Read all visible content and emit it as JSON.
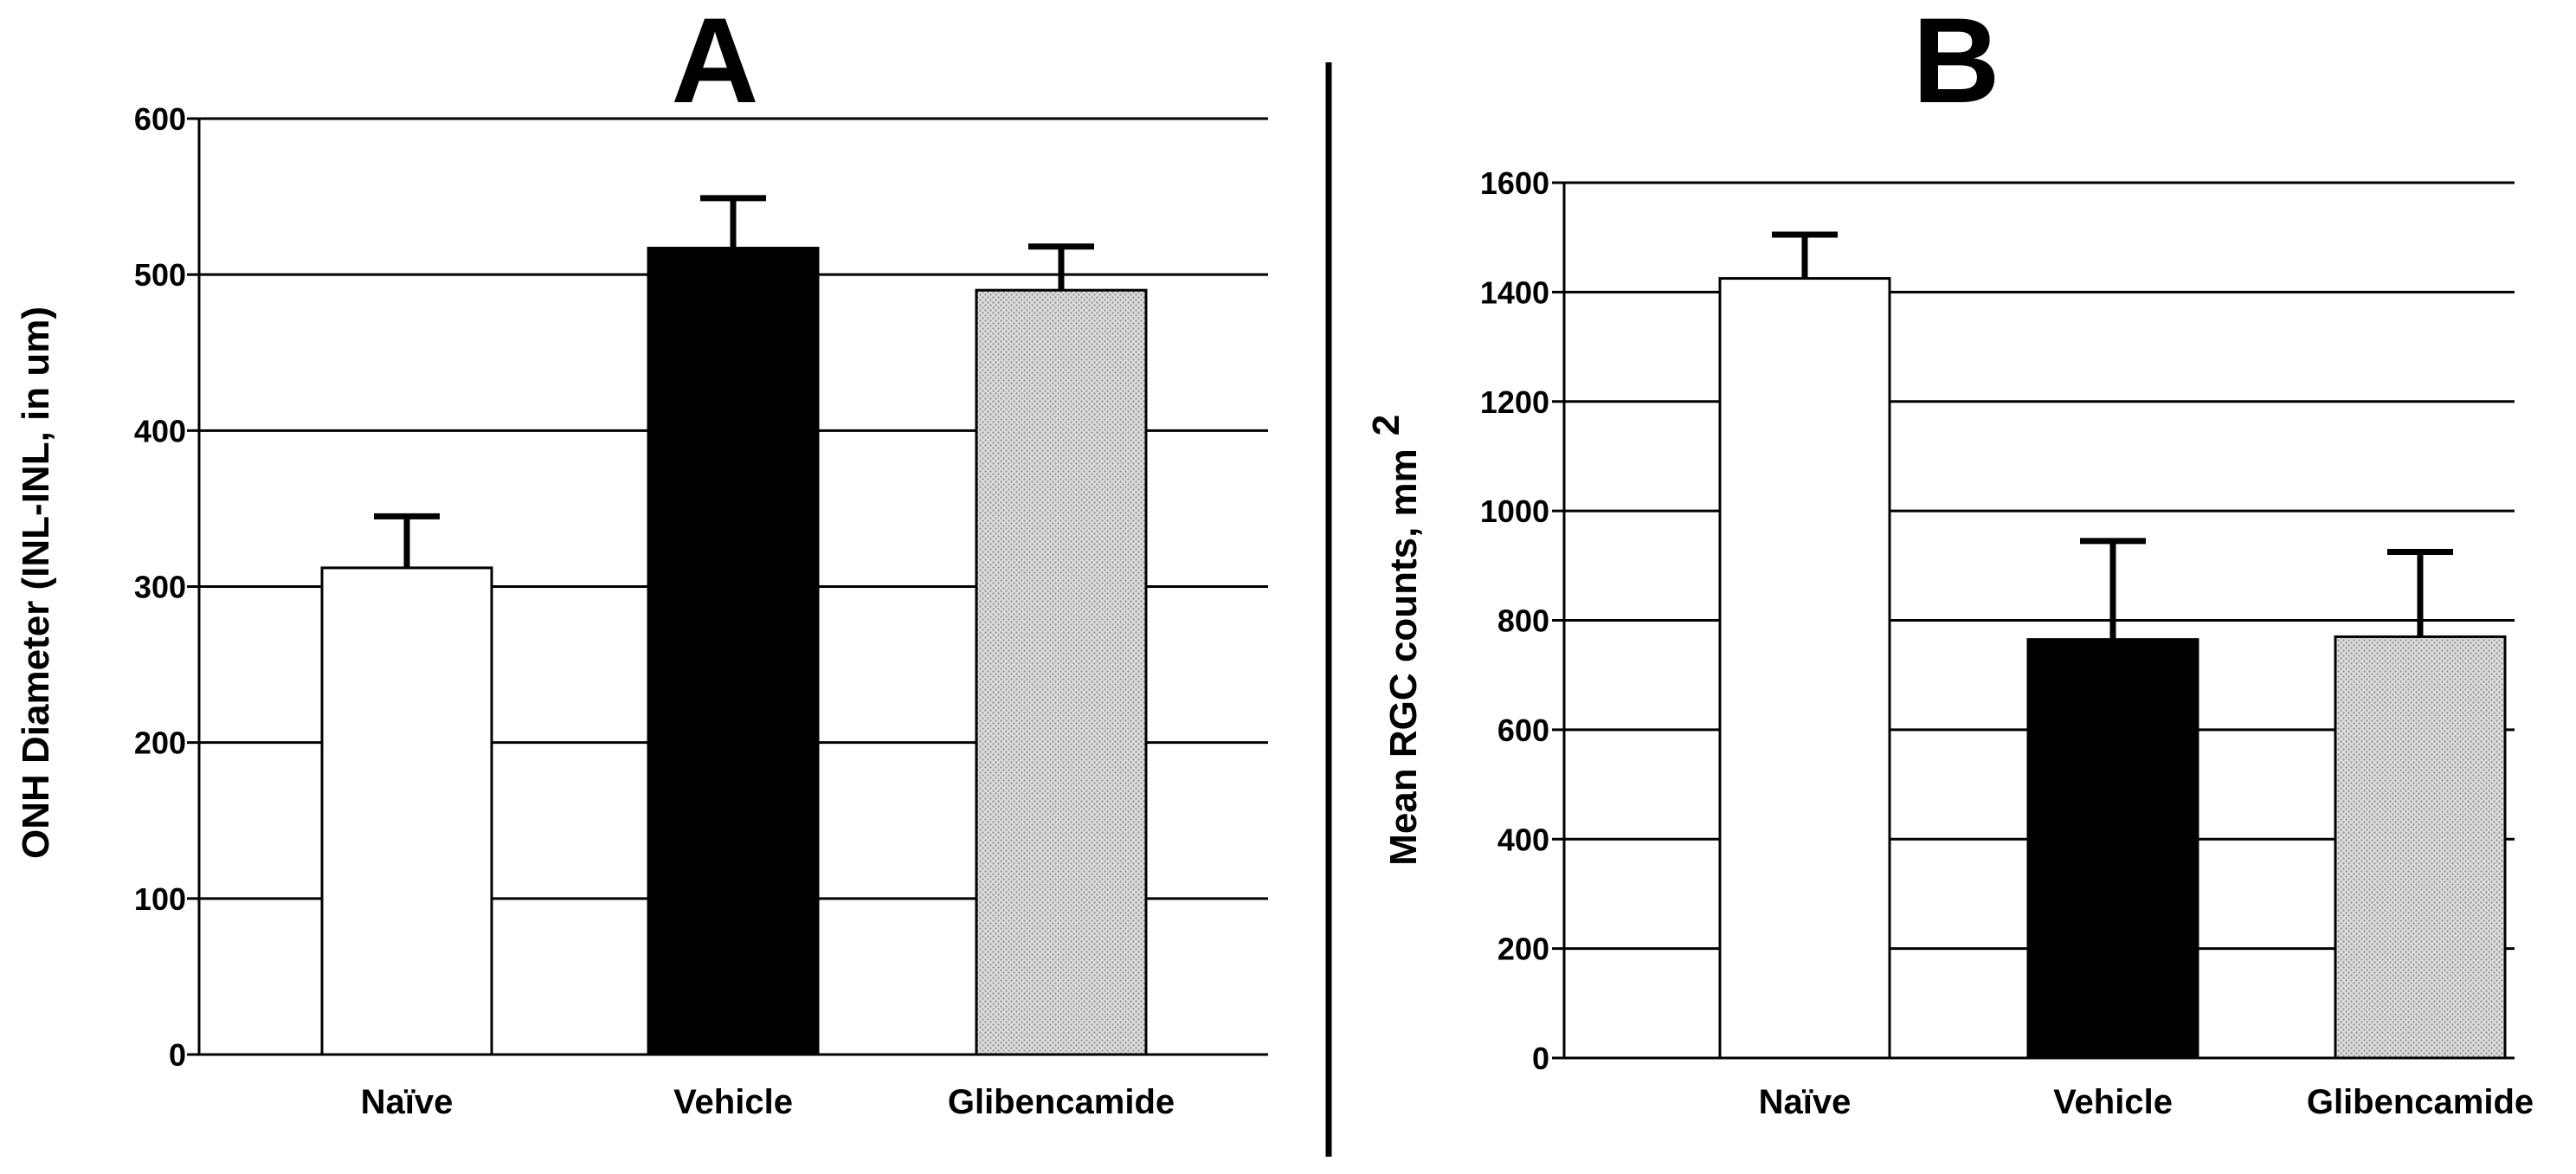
{
  "colors": {
    "naive_fill": "#ffffff",
    "vehicle_fill": "#000000",
    "glibencamide_fill": "#d4d4d4",
    "gridline": "#000000",
    "divider": "#000000"
  },
  "chart_data": [
    {
      "panel": "A",
      "type": "bar",
      "categories": [
        "Naïve",
        "Vehicle",
        "Glibencamide"
      ],
      "values": [
        312,
        517,
        490
      ],
      "error_bars": [
        33,
        32,
        28
      ],
      "fills": [
        "white",
        "black",
        "dotted-gray"
      ],
      "xlabel": "",
      "ylabel": "ONH Diameter (INL-INL, in um)",
      "ylim": [
        0,
        600
      ],
      "yticks": [
        "0",
        "100",
        "200",
        "300",
        "400",
        "500",
        "600"
      ],
      "grid": true,
      "legend": "none"
    },
    {
      "panel": "B",
      "type": "bar",
      "categories": [
        "Naïve",
        "Vehicle",
        "Glibencamide"
      ],
      "values": [
        1425,
        765,
        770
      ],
      "error_bars": [
        80,
        180,
        155
      ],
      "fills": [
        "white",
        "black",
        "dotted-gray"
      ],
      "xlabel": "",
      "ylabel": "Mean RGC counts, mm",
      "ylabel_superscript": "2",
      "ylim": [
        0,
        1600
      ],
      "yticks": [
        "0",
        "200",
        "400",
        "600",
        "800",
        "1000",
        "1200",
        "1400",
        "1600"
      ],
      "grid": true,
      "legend": "none"
    }
  ]
}
